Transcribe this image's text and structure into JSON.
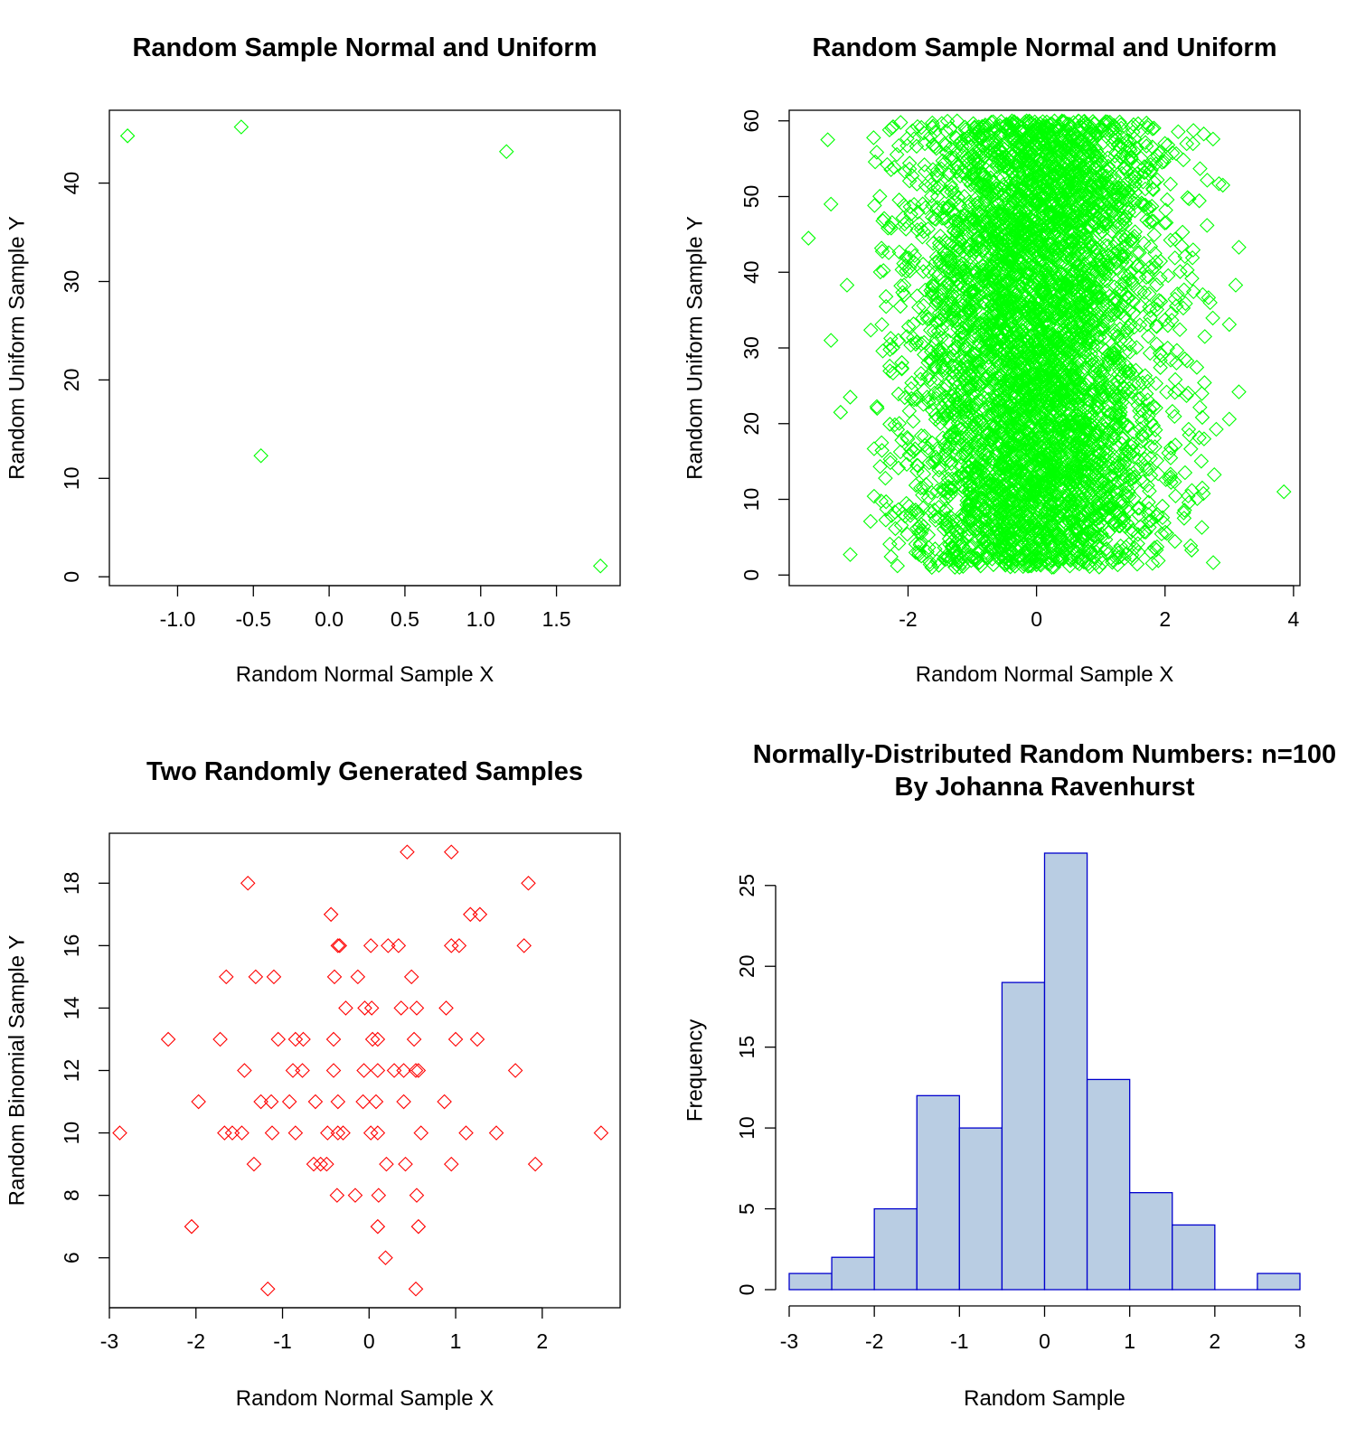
{
  "chart_data": [
    {
      "type": "scatter",
      "title": "Random Sample Normal and Uniform",
      "xlabel": "Random Normal Sample X",
      "ylabel": "Random Uniform Sample Y",
      "xlim": [
        -1.45,
        1.92
      ],
      "ylim": [
        -0.9,
        47.4
      ],
      "xticks": [
        "-1.0",
        "-0.5",
        "0.0",
        "0.5",
        "1.0",
        "1.5"
      ],
      "xtick_values": [
        -1.0,
        -0.5,
        0.0,
        0.5,
        1.0,
        1.5
      ],
      "yticks": [
        "0",
        "10",
        "20",
        "30",
        "40"
      ],
      "ytick_values": [
        0,
        10,
        20,
        30,
        40
      ],
      "marker": "diamond-open",
      "color": "#00ff00",
      "x": [
        -1.33,
        -0.58,
        -0.45,
        1.17,
        1.79
      ],
      "y": [
        44.8,
        45.7,
        12.3,
        43.2,
        1.1
      ]
    },
    {
      "type": "scatter",
      "title": "Random Sample Normal and Uniform",
      "xlabel": "Random Normal Sample X",
      "ylabel": "Random Uniform Sample Y",
      "xlim": [
        -3.85,
        4.1
      ],
      "ylim": [
        -1.4,
        61.4
      ],
      "xticks": [
        "-2",
        "0",
        "2",
        "4"
      ],
      "xtick_values": [
        -2,
        0,
        2,
        4
      ],
      "yticks": [
        "0",
        "10",
        "20",
        "30",
        "40",
        "50",
        "60"
      ],
      "ytick_values": [
        0,
        10,
        20,
        30,
        40,
        50,
        60
      ],
      "marker": "diamond-open",
      "color": "#00ff00",
      "distribution": {
        "x": "normal",
        "x_mean": 0,
        "x_sd": 1,
        "y": "uniform",
        "y_min": 1,
        "y_max": 60,
        "n": 5000
      },
      "x": [
        -3.55,
        -3.25,
        -3.2,
        -3.2,
        -3.05,
        -2.95,
        -2.9,
        -2.9,
        3.85,
        3.15,
        3.15,
        3.1,
        3.0,
        3.0,
        2.9
      ],
      "y": [
        44.5,
        57.5,
        49.0,
        31.0,
        21.5,
        38.3,
        23.5,
        2.7,
        11.0,
        43.3,
        24.2,
        38.3,
        20.6,
        33.1,
        51.5
      ]
    },
    {
      "type": "scatter",
      "title": "Two Randomly Generated Samples",
      "xlabel": "Random Normal Sample X",
      "ylabel": "Random Binomial Sample Y",
      "xlim": [
        -3.0,
        2.9
      ],
      "ylim": [
        4.4,
        19.6
      ],
      "xticks": [
        "-3",
        "-2",
        "-1",
        "0",
        "1",
        "2"
      ],
      "xtick_values": [
        -3,
        -2,
        -1,
        0,
        1,
        2
      ],
      "yticks": [
        "6",
        "8",
        "10",
        "12",
        "14",
        "16",
        "18"
      ],
      "ytick_values": [
        6,
        8,
        10,
        12,
        14,
        16,
        18
      ],
      "marker": "diamond-open",
      "color": "#ff0000",
      "x": [
        0.44,
        0.95,
        -1.4,
        1.84,
        -0.44,
        1.17,
        1.28,
        -0.36,
        -0.34,
        0.02,
        0.22,
        0.34,
        0.95,
        1.04,
        1.79,
        -1.65,
        -1.31,
        -1.1,
        -0.4,
        -0.13,
        0.49,
        -0.27,
        -0.05,
        0.03,
        0.37,
        0.55,
        0.89,
        -2.32,
        -1.72,
        -1.05,
        -0.85,
        -0.76,
        -0.41,
        0.04,
        0.1,
        0.52,
        1.0,
        1.25,
        -1.44,
        -0.88,
        -0.77,
        -0.41,
        -0.06,
        0.1,
        0.29,
        0.4,
        0.54,
        0.57,
        1.69,
        -1.97,
        -1.25,
        -1.13,
        -0.92,
        -0.62,
        -0.36,
        -0.07,
        0.08,
        0.4,
        0.87,
        -2.88,
        -1.67,
        -1.58,
        -1.47,
        -1.12,
        -0.85,
        -0.48,
        -0.36,
        -0.3,
        0.02,
        0.1,
        0.6,
        1.12,
        1.47,
        2.68,
        -1.33,
        -0.64,
        -0.56,
        -0.49,
        0.2,
        0.42,
        0.95,
        1.92,
        -0.37,
        -0.16,
        0.11,
        0.55,
        -2.05,
        0.1,
        0.57,
        0.19,
        -1.17,
        0.54
      ],
      "y": [
        19,
        19,
        18,
        18,
        17,
        17,
        17,
        16,
        16,
        16,
        16,
        16,
        16,
        16,
        16,
        15,
        15,
        15,
        15,
        15,
        15,
        14,
        14,
        14,
        14,
        14,
        14,
        13,
        13,
        13,
        13,
        13,
        13,
        13,
        13,
        13,
        13,
        13,
        12,
        12,
        12,
        12,
        12,
        12,
        12,
        12,
        12,
        12,
        12,
        11,
        11,
        11,
        11,
        11,
        11,
        11,
        11,
        11,
        11,
        10,
        10,
        10,
        10,
        10,
        10,
        10,
        10,
        10,
        10,
        10,
        10,
        10,
        10,
        10,
        9,
        9,
        9,
        9,
        9,
        9,
        9,
        9,
        8,
        8,
        8,
        8,
        7,
        7,
        7,
        6,
        5,
        5
      ]
    },
    {
      "type": "bar",
      "title": "Normally-Distributed Random Numbers: n=100",
      "subtitle": "By Johanna Ravenhurst",
      "xlabel": "Random Sample",
      "ylabel": "Frequency",
      "xlim": [
        -3.0,
        3.0
      ],
      "ylim": [
        0,
        27
      ],
      "xticks": [
        "-3",
        "-2",
        "-1",
        "0",
        "1",
        "2",
        "3"
      ],
      "xtick_values": [
        -3,
        -2,
        -1,
        0,
        1,
        2,
        3
      ],
      "yticks": [
        "0",
        "5",
        "10",
        "15",
        "20",
        "25"
      ],
      "ytick_values": [
        0,
        5,
        10,
        15,
        20,
        25
      ],
      "bin_edges": [
        -3.0,
        -2.5,
        -2.0,
        -1.5,
        -1.0,
        -0.5,
        0.0,
        0.5,
        1.0,
        1.5,
        2.0,
        2.5,
        3.0
      ],
      "values": [
        1,
        2,
        5,
        12,
        10,
        19,
        27,
        13,
        6,
        4,
        0,
        1
      ],
      "fill_color": "#b9cde3",
      "border_color": "#0000cd"
    }
  ]
}
